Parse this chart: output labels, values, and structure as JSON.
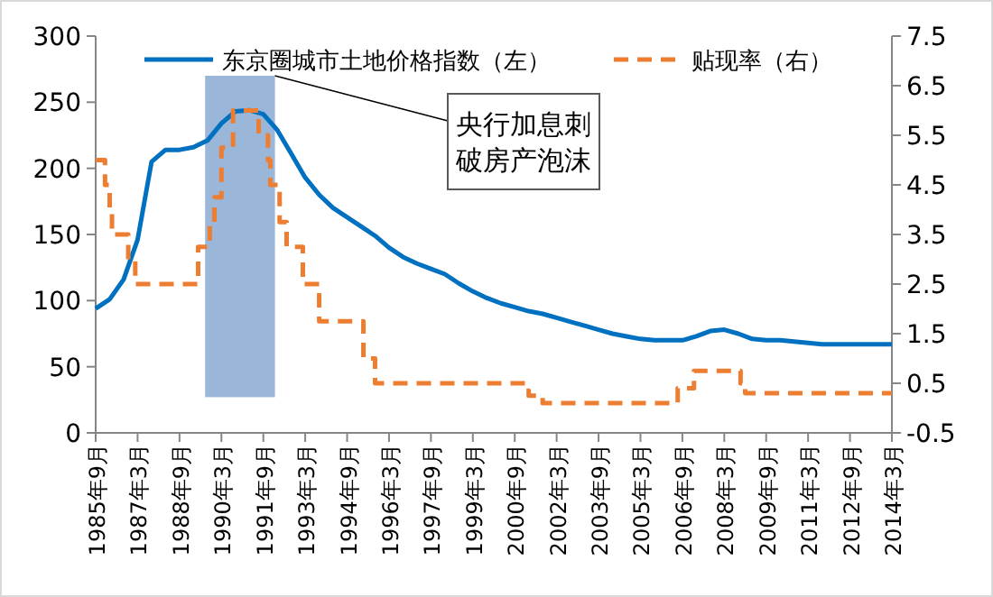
{
  "chart_data": {
    "type": "line",
    "series": [
      {
        "name": "东京圈城市土地价格指数（左）",
        "type": "line",
        "color": "#0070c0",
        "axis": "y",
        "line_style": "solid",
        "x": [
          "1985-09",
          "1986-03",
          "1986-09",
          "1987-03",
          "1987-09",
          "1988-03",
          "1988-09",
          "1989-03",
          "1989-09",
          "1990-03",
          "1990-09",
          "1991-03",
          "1991-09",
          "1992-03",
          "1992-09",
          "1993-03",
          "1993-09",
          "1994-03",
          "1994-09",
          "1995-03",
          "1995-09",
          "1996-03",
          "1996-09",
          "1997-03",
          "1997-09",
          "1998-03",
          "1998-09",
          "1999-03",
          "1999-09",
          "2000-03",
          "2000-09",
          "2001-03",
          "2001-09",
          "2002-03",
          "2002-09",
          "2003-03",
          "2003-09",
          "2004-03",
          "2004-09",
          "2005-03",
          "2005-09",
          "2006-03",
          "2006-09",
          "2007-03",
          "2007-09",
          "2008-03",
          "2008-09",
          "2009-03",
          "2009-09",
          "2010-03",
          "2010-09",
          "2011-03",
          "2011-09",
          "2012-03",
          "2012-09",
          "2013-03",
          "2013-09",
          "2014-03"
        ],
        "values": [
          94,
          101,
          116,
          146,
          205,
          214,
          214,
          216,
          221,
          234,
          243,
          244,
          241,
          229,
          211,
          193,
          180,
          170,
          163,
          156,
          149,
          140,
          133,
          128,
          124,
          120,
          113,
          107,
          102,
          98,
          95,
          92,
          90,
          87,
          84,
          81,
          78,
          75,
          73,
          71,
          70,
          70,
          70,
          73,
          77,
          78,
          75,
          71,
          70,
          70,
          69,
          68,
          67,
          67,
          67,
          67,
          67,
          67
        ]
      },
      {
        "name": "贴现率（右）",
        "type": "step",
        "color": "#ed7d31",
        "axis": "y2",
        "line_style": "dashed",
        "x": [
          "1985-09",
          "1986-01",
          "1986-03",
          "1986-04",
          "1986-11",
          "1987-02",
          "1989-05",
          "1989-10",
          "1989-12",
          "1990-03",
          "1990-08",
          "1991-07",
          "1991-11",
          "1991-12",
          "1992-04",
          "1992-07",
          "1993-02",
          "1993-09",
          "1995-04",
          "1995-09",
          "2001-02",
          "2001-03",
          "2001-09",
          "2006-07",
          "2007-02",
          "2008-10",
          "2008-12",
          "2014-03"
        ],
        "values": [
          5.0,
          4.5,
          4.0,
          3.5,
          3.0,
          2.5,
          3.25,
          3.75,
          4.25,
          5.25,
          6.0,
          5.5,
          5.0,
          4.5,
          3.75,
          3.25,
          2.5,
          1.75,
          1.0,
          0.5,
          0.35,
          0.25,
          0.1,
          0.4,
          0.75,
          0.5,
          0.3,
          0.3
        ]
      }
    ],
    "xlim": [
      "1985-09",
      "2014-03"
    ],
    "xticks": [
      {
        "value": "1985-09",
        "label": "1985年9月"
      },
      {
        "value": "1987-03",
        "label": "1987年3月"
      },
      {
        "value": "1988-09",
        "label": "1988年9月"
      },
      {
        "value": "1990-03",
        "label": "1990年3月"
      },
      {
        "value": "1991-09",
        "label": "1991年9月"
      },
      {
        "value": "1993-03",
        "label": "1993年3月"
      },
      {
        "value": "1994-09",
        "label": "1994年9月"
      },
      {
        "value": "1996-03",
        "label": "1996年3月"
      },
      {
        "value": "1997-09",
        "label": "1997年9月"
      },
      {
        "value": "1999-03",
        "label": "1999年3月"
      },
      {
        "value": "2000-09",
        "label": "2000年9月"
      },
      {
        "value": "2002-03",
        "label": "2002年3月"
      },
      {
        "value": "2003-09",
        "label": "2003年9月"
      },
      {
        "value": "2005-03",
        "label": "2005年3月"
      },
      {
        "value": "2006-09",
        "label": "2006年9月"
      },
      {
        "value": "2008-03",
        "label": "2008年3月"
      },
      {
        "value": "2009-09",
        "label": "2009年9月"
      },
      {
        "value": "2011-03",
        "label": "2011年3月"
      },
      {
        "value": "2012-09",
        "label": "2012年9月"
      },
      {
        "value": "2014-03",
        "label": "2014年3月"
      }
    ],
    "ylim": [
      0,
      300
    ],
    "yticks": [
      0,
      50,
      100,
      150,
      200,
      250,
      300
    ],
    "y2lim": [
      -0.5,
      7.5
    ],
    "y2ticks": [
      -0.5,
      0.5,
      1.5,
      2.5,
      3.5,
      4.5,
      5.5,
      6.5,
      7.5
    ],
    "bands": [
      {
        "axis": "x",
        "from": "1989-08",
        "to": "1992-02",
        "color": "#95b3d7"
      }
    ],
    "annotations": [
      {
        "text": "央行加息刺破房产泡沫",
        "x": "1992-02",
        "y": 270
      }
    ],
    "legend": "top",
    "grid": false,
    "marker": "none"
  }
}
